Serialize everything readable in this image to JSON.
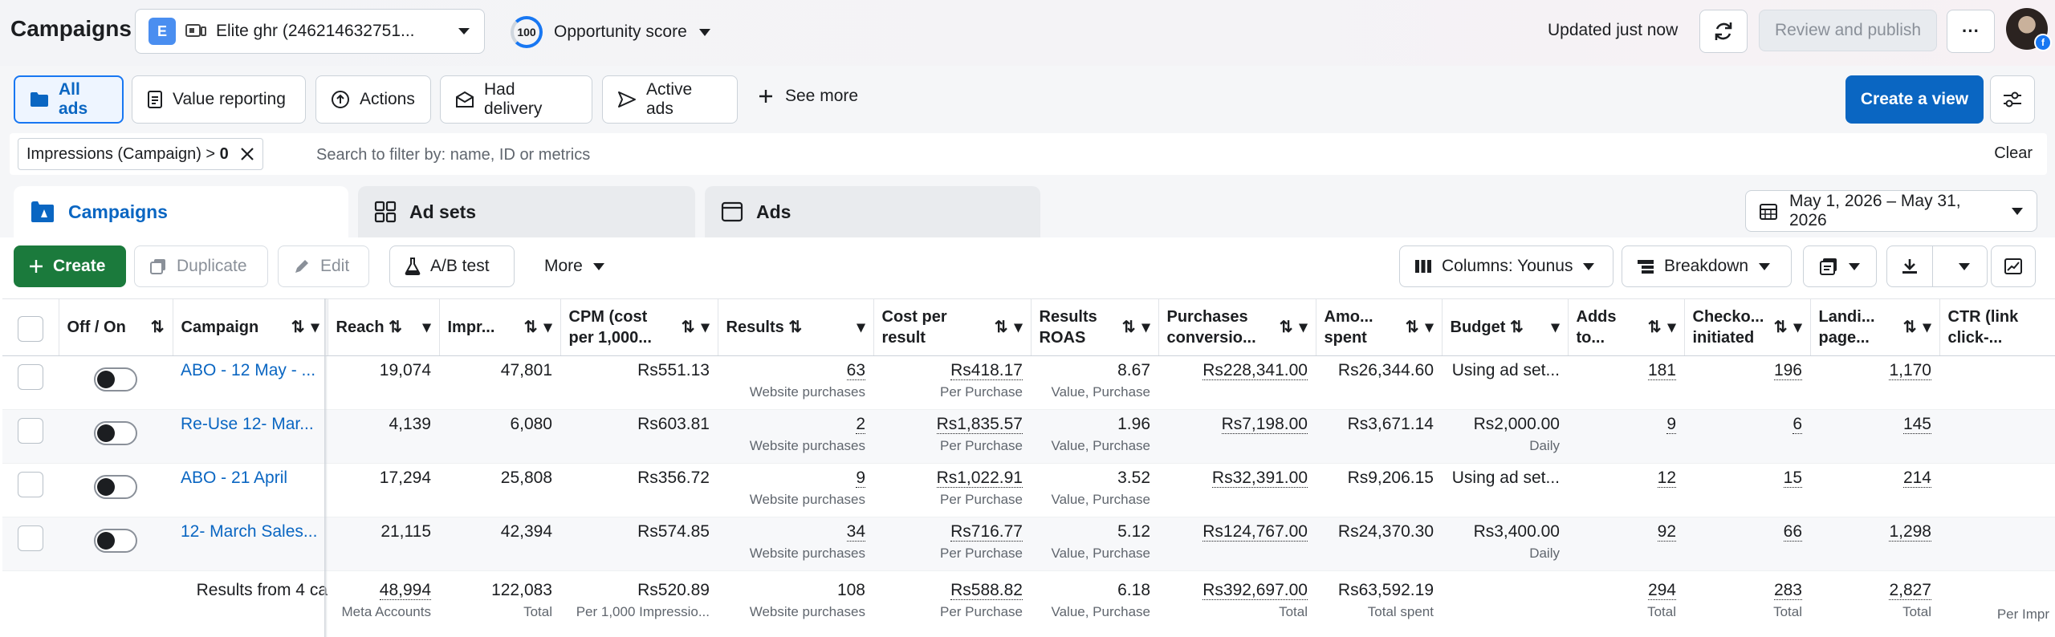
{
  "header": {
    "title": "Campaigns",
    "account_badge": "E",
    "account_name": "Elite ghr (246214632751...",
    "opportunity_score": "100",
    "opportunity_label": "Opportunity score",
    "updated_text": "Updated just now",
    "review_publish_label": "Review and publish",
    "more_label": "···"
  },
  "views": {
    "tabs": [
      {
        "label": "All ads",
        "icon": "folder-icon"
      },
      {
        "label": "Value reporting",
        "icon": "document-icon"
      },
      {
        "label": "Actions",
        "icon": "arrow-up-circle-icon"
      },
      {
        "label": "Had delivery",
        "icon": "envelope-icon"
      },
      {
        "label": "Active ads",
        "icon": "send-icon"
      }
    ],
    "see_more_label": "See more",
    "create_view_label": "Create a view"
  },
  "filter": {
    "chip_label": "Impressions (Campaign) >",
    "chip_value": "0",
    "placeholder": "Search to filter by: name, ID or metrics",
    "clear_label": "Clear"
  },
  "level_tabs": {
    "campaigns": "Campaigns",
    "ad_sets": "Ad sets",
    "ads": "Ads"
  },
  "date_range": "May 1, 2026 – May 31, 2026",
  "toolbar": {
    "create": "Create",
    "duplicate": "Duplicate",
    "edit": "Edit",
    "ab_test": "A/B test",
    "more": "More",
    "columns": "Columns: Younus",
    "breakdown": "Breakdown"
  },
  "table": {
    "headers": {
      "offon": "Off / On",
      "campaign": "Campaign",
      "reach": "Reach",
      "impressions": "Impr...",
      "cpm": "CPM (cost per 1,000...",
      "results": "Results",
      "cost_per_result": "Cost per result",
      "results_roas": "Results ROAS",
      "purchases_conv": "Purchases conversio...",
      "amount_spent": "Amo... spent",
      "budget": "Budget",
      "adds_to": "Adds to...",
      "checkouts": "Checko... initiated",
      "landing": "Landi... page...",
      "ctr": "CTR (link click-..."
    },
    "rows": [
      {
        "name": "ABO - 12 May - ...",
        "reach": "19,074",
        "impressions": "47,801",
        "cpm": "Rs551.13",
        "results": "63",
        "results_sub": "Website purchases",
        "cpr": "Rs418.17",
        "cpr_sub": "Per Purchase",
        "roas": "8.67",
        "roas_sub": "Value, Purchase",
        "conv": "Rs228,341.00",
        "spent": "Rs26,344.60",
        "budget": "Using ad set...",
        "budget_sub": "",
        "adds": "181",
        "checkouts": "196",
        "landing": "1,170"
      },
      {
        "name": "Re-Use 12- Mar...",
        "reach": "4,139",
        "impressions": "6,080",
        "cpm": "Rs603.81",
        "results": "2",
        "results_sub": "Website purchases",
        "cpr": "Rs1,835.57",
        "cpr_sub": "Per Purchase",
        "roas": "1.96",
        "roas_sub": "Value, Purchase",
        "conv": "Rs7,198.00",
        "spent": "Rs3,671.14",
        "budget": "Rs2,000.00",
        "budget_sub": "Daily",
        "adds": "9",
        "checkouts": "6",
        "landing": "145"
      },
      {
        "name": "ABO - 21 April",
        "reach": "17,294",
        "impressions": "25,808",
        "cpm": "Rs356.72",
        "results": "9",
        "results_sub": "Website purchases",
        "cpr": "Rs1,022.91",
        "cpr_sub": "Per Purchase",
        "roas": "3.52",
        "roas_sub": "Value, Purchase",
        "conv": "Rs32,391.00",
        "spent": "Rs9,206.15",
        "budget": "Using ad set...",
        "budget_sub": "",
        "adds": "12",
        "checkouts": "15",
        "landing": "214"
      },
      {
        "name": "12- March Sales...",
        "reach": "21,115",
        "impressions": "42,394",
        "cpm": "Rs574.85",
        "results": "34",
        "results_sub": "Website purchases",
        "cpr": "Rs716.77",
        "cpr_sub": "Per Purchase",
        "roas": "5.12",
        "roas_sub": "Value, Purchase",
        "conv": "Rs124,767.00",
        "spent": "Rs24,370.30",
        "budget": "Rs3,400.00",
        "budget_sub": "Daily",
        "adds": "92",
        "checkouts": "66",
        "landing": "1,298"
      }
    ],
    "totals": {
      "label": "Results from 4 ca",
      "reach": "48,994",
      "reach_sub": "Meta Accounts",
      "impressions": "122,083",
      "impressions_sub": "Total",
      "cpm": "Rs520.89",
      "cpm_sub": "Per 1,000 Impressio...",
      "results": "108",
      "results_sub": "Website purchases",
      "cpr": "Rs588.82",
      "cpr_sub": "Per Purchase",
      "roas": "6.18",
      "roas_sub": "Value, Purchase",
      "conv": "Rs392,697.00",
      "conv_sub": "Total",
      "spent": "Rs63,592.19",
      "spent_sub": "Total spent",
      "adds": "294",
      "adds_sub": "Total",
      "checkouts": "283",
      "checkouts_sub": "Total",
      "landing": "2,827",
      "landing_sub": "Total",
      "ctr_sub": "Per Impr"
    }
  },
  "colors": {
    "accent": "#0a66c2",
    "create_green": "#1b7a3c",
    "link": "#0a66c2"
  }
}
